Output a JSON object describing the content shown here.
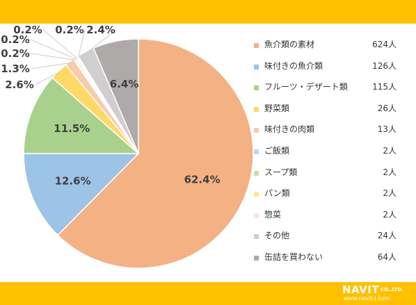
{
  "colors": {
    "band": "#FFC000",
    "logo_text": "#ffffff"
  },
  "chart_data": {
    "type": "pie",
    "start_angle_deg": 0,
    "direction": "clockwise",
    "slices": [
      {
        "label": "魚介類の素材",
        "value": 624,
        "value_text": "624人",
        "percent_text": "62.4%",
        "color": "#F4B183"
      },
      {
        "label": "味付きの魚介類",
        "value": 126,
        "value_text": "126人",
        "percent_text": "12.6%",
        "color": "#9DC3E6"
      },
      {
        "label": "フルーツ・デザート類",
        "value": 115,
        "value_text": "115人",
        "percent_text": "11.5%",
        "color": "#A9D18E"
      },
      {
        "label": "野菜類",
        "value": 26,
        "value_text": "26人",
        "percent_text": "2.6%",
        "color": "#FFD966"
      },
      {
        "label": "味付きの肉類",
        "value": 13,
        "value_text": "13人",
        "percent_text": "1.3%",
        "color": "#F8CBAD"
      },
      {
        "label": "ご飯類",
        "value": 2,
        "value_text": "2人",
        "percent_text": "0.2%",
        "color": "#BDD7EE"
      },
      {
        "label": "スープ類",
        "value": 2,
        "value_text": "2人",
        "percent_text": "0.2%",
        "color": "#C5E0B4"
      },
      {
        "label": "パン類",
        "value": 2,
        "value_text": "2人",
        "percent_text": "0.2%",
        "color": "#FFE699"
      },
      {
        "label": "惣菜",
        "value": 2,
        "value_text": "2人",
        "percent_text": "0.2%",
        "color": "#FBE5D6"
      },
      {
        "label": "その他",
        "value": 24,
        "value_text": "24人",
        "percent_text": "2.4%",
        "color": "#D0CECE"
      },
      {
        "label": "缶詰を買わない",
        "value": 64,
        "value_text": "64人",
        "percent_text": "6.4%",
        "color": "#AEAAAA"
      }
    ],
    "legend_position": "right"
  },
  "logo": {
    "name": "NAVIT",
    "suffix": "CO.,LTD.",
    "url": "www.navit-j.com"
  }
}
